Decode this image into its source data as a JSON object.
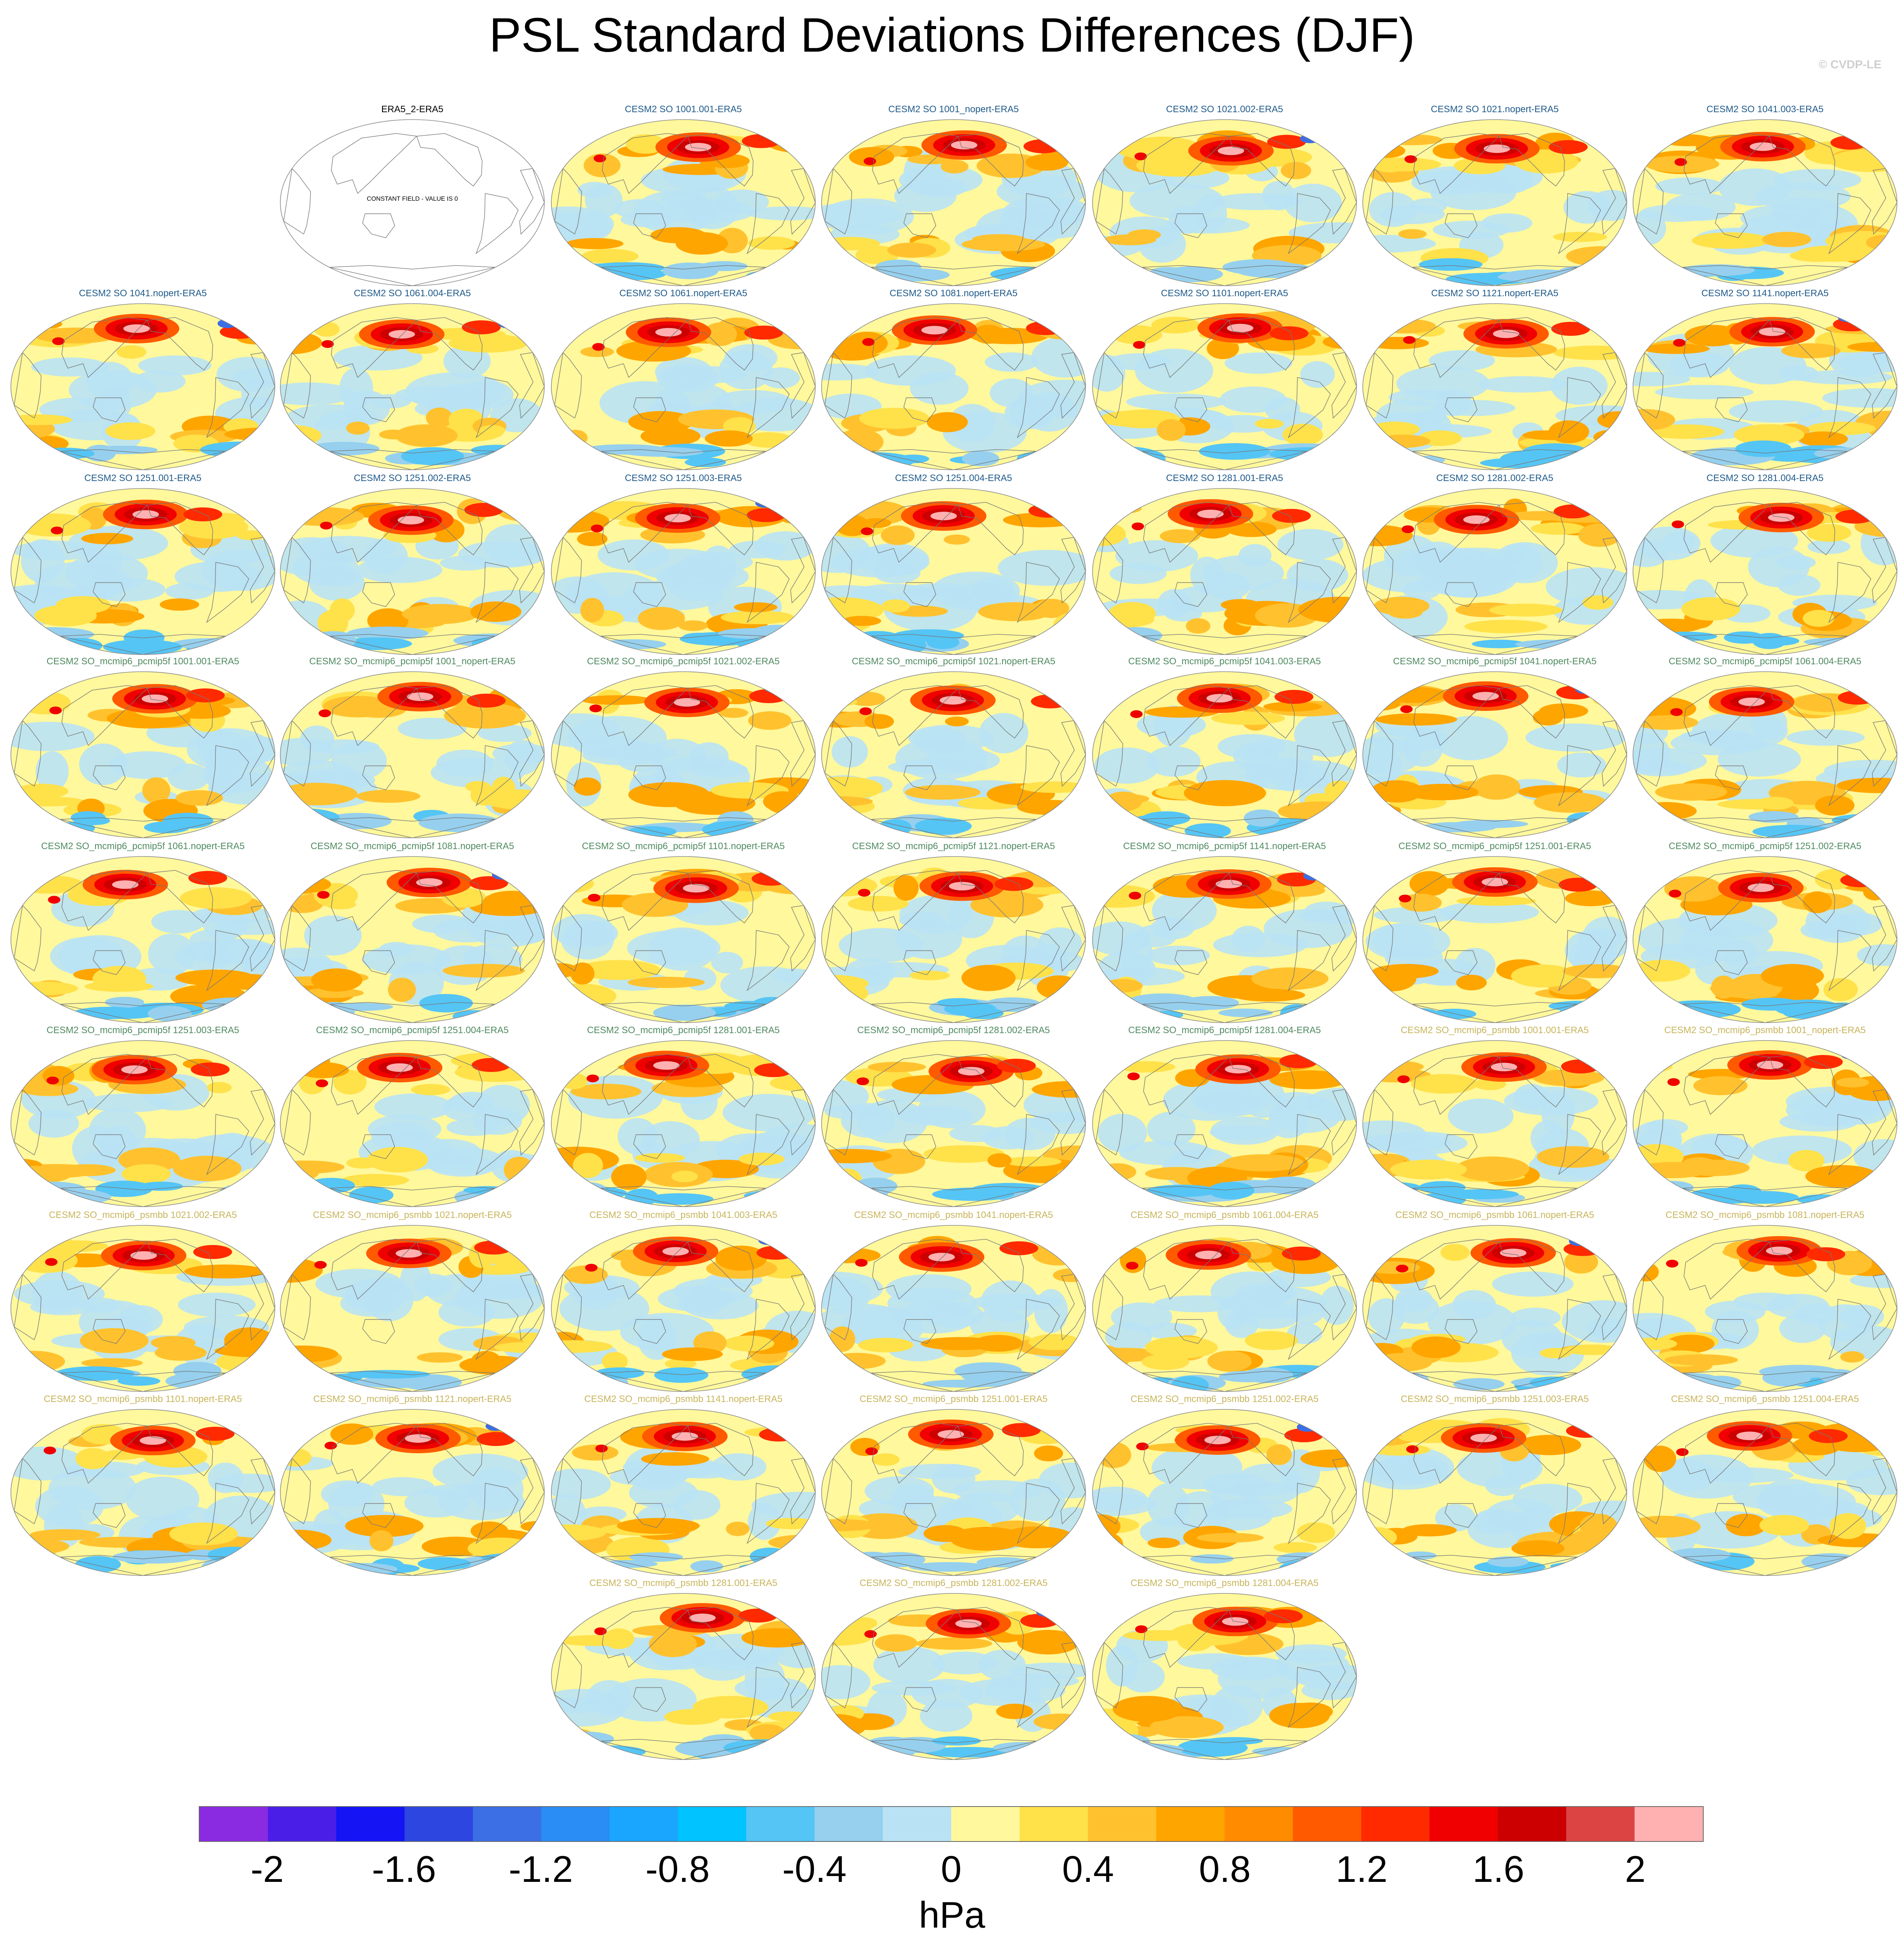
{
  "title": "PSL Standard Deviations Differences (DJF)",
  "credit": "© CVDP-LE",
  "constant_field_label": "CONSTANT FIELD - VALUE IS 0",
  "panels": [
    {
      "label": "ERA5_2-ERA5",
      "group": "ref"
    },
    {
      "label": "CESM2 SO 1001.001-ERA5",
      "group": "so"
    },
    {
      "label": "CESM2 SO 1001_nopert-ERA5",
      "group": "so"
    },
    {
      "label": "CESM2 SO 1021.002-ERA5",
      "group": "so"
    },
    {
      "label": "CESM2 SO 1021.nopert-ERA5",
      "group": "so"
    },
    {
      "label": "CESM2 SO 1041.003-ERA5",
      "group": "so"
    },
    {
      "label": "CESM2 SO 1041.nopert-ERA5",
      "group": "so"
    },
    {
      "label": "CESM2 SO 1061.004-ERA5",
      "group": "so"
    },
    {
      "label": "CESM2 SO 1061.nopert-ERA5",
      "group": "so"
    },
    {
      "label": "CESM2 SO 1081.nopert-ERA5",
      "group": "so"
    },
    {
      "label": "CESM2 SO 1101.nopert-ERA5",
      "group": "so"
    },
    {
      "label": "CESM2 SO 1121.nopert-ERA5",
      "group": "so"
    },
    {
      "label": "CESM2 SO 1141.nopert-ERA5",
      "group": "so"
    },
    {
      "label": "CESM2 SO 1251.001-ERA5",
      "group": "so"
    },
    {
      "label": "CESM2 SO 1251.002-ERA5",
      "group": "so"
    },
    {
      "label": "CESM2 SO 1251.003-ERA5",
      "group": "so"
    },
    {
      "label": "CESM2 SO 1251.004-ERA5",
      "group": "so"
    },
    {
      "label": "CESM2 SO 1281.001-ERA5",
      "group": "so"
    },
    {
      "label": "CESM2 SO 1281.002-ERA5",
      "group": "so"
    },
    {
      "label": "CESM2 SO 1281.004-ERA5",
      "group": "so"
    },
    {
      "label": "CESM2 SO_mcmip6_pcmip5f 1001.001-ERA5",
      "group": "pcmip5f"
    },
    {
      "label": "CESM2 SO_mcmip6_pcmip5f 1001_nopert-ERA5",
      "group": "pcmip5f"
    },
    {
      "label": "CESM2 SO_mcmip6_pcmip5f 1021.002-ERA5",
      "group": "pcmip5f"
    },
    {
      "label": "CESM2 SO_mcmip6_pcmip5f 1021.nopert-ERA5",
      "group": "pcmip5f"
    },
    {
      "label": "CESM2 SO_mcmip6_pcmip5f 1041.003-ERA5",
      "group": "pcmip5f"
    },
    {
      "label": "CESM2 SO_mcmip6_pcmip5f 1041.nopert-ERA5",
      "group": "pcmip5f"
    },
    {
      "label": "CESM2 SO_mcmip6_pcmip5f 1061.004-ERA5",
      "group": "pcmip5f"
    },
    {
      "label": "CESM2 SO_mcmip6_pcmip5f 1061.nopert-ERA5",
      "group": "pcmip5f"
    },
    {
      "label": "CESM2 SO_mcmip6_pcmip5f 1081.nopert-ERA5",
      "group": "pcmip5f"
    },
    {
      "label": "CESM2 SO_mcmip6_pcmip5f 1101.nopert-ERA5",
      "group": "pcmip5f"
    },
    {
      "label": "CESM2 SO_mcmip6_pcmip5f 1121.nopert-ERA5",
      "group": "pcmip5f"
    },
    {
      "label": "CESM2 SO_mcmip6_pcmip5f 1141.nopert-ERA5",
      "group": "pcmip5f"
    },
    {
      "label": "CESM2 SO_mcmip6_pcmip5f 1251.001-ERA5",
      "group": "pcmip5f"
    },
    {
      "label": "CESM2 SO_mcmip6_pcmip5f 1251.002-ERA5",
      "group": "pcmip5f"
    },
    {
      "label": "CESM2 SO_mcmip6_pcmip5f 1251.003-ERA5",
      "group": "pcmip5f"
    },
    {
      "label": "CESM2 SO_mcmip6_pcmip5f 1251.004-ERA5",
      "group": "pcmip5f"
    },
    {
      "label": "CESM2 SO_mcmip6_pcmip5f 1281.001-ERA5",
      "group": "pcmip5f"
    },
    {
      "label": "CESM2 SO_mcmip6_pcmip5f 1281.002-ERA5",
      "group": "pcmip5f"
    },
    {
      "label": "CESM2 SO_mcmip6_pcmip5f 1281.004-ERA5",
      "group": "pcmip5f"
    },
    {
      "label": "CESM2 SO_mcmip6_psmbb 1001.001-ERA5",
      "group": "psmbb"
    },
    {
      "label": "CESM2 SO_mcmip6_psmbb 1001_nopert-ERA5",
      "group": "psmbb"
    },
    {
      "label": "CESM2 SO_mcmip6_psmbb 1021.002-ERA5",
      "group": "psmbb"
    },
    {
      "label": "CESM2 SO_mcmip6_psmbb 1021.nopert-ERA5",
      "group": "psmbb"
    },
    {
      "label": "CESM2 SO_mcmip6_psmbb 1041.003-ERA5",
      "group": "psmbb"
    },
    {
      "label": "CESM2 SO_mcmip6_psmbb 1041.nopert-ERA5",
      "group": "psmbb"
    },
    {
      "label": "CESM2 SO_mcmip6_psmbb 1061.004-ERA5",
      "group": "psmbb"
    },
    {
      "label": "CESM2 SO_mcmip6_psmbb 1061.nopert-ERA5",
      "group": "psmbb"
    },
    {
      "label": "CESM2 SO_mcmip6_psmbb 1081.nopert-ERA5",
      "group": "psmbb"
    },
    {
      "label": "CESM2 SO_mcmip6_psmbb 1101.nopert-ERA5",
      "group": "psmbb"
    },
    {
      "label": "CESM2 SO_mcmip6_psmbb 1121.nopert-ERA5",
      "group": "psmbb"
    },
    {
      "label": "CESM2 SO_mcmip6_psmbb 1141.nopert-ERA5",
      "group": "psmbb"
    },
    {
      "label": "CESM2 SO_mcmip6_psmbb 1251.001-ERA5",
      "group": "psmbb"
    },
    {
      "label": "CESM2 SO_mcmip6_psmbb 1251.002-ERA5",
      "group": "psmbb"
    },
    {
      "label": "CESM2 SO_mcmip6_psmbb 1251.003-ERA5",
      "group": "psmbb"
    },
    {
      "label": "CESM2 SO_mcmip6_psmbb 1251.004-ERA5",
      "group": "psmbb"
    },
    {
      "label": "CESM2 SO_mcmip6_psmbb 1281.001-ERA5",
      "group": "psmbb"
    },
    {
      "label": "CESM2 SO_mcmip6_psmbb 1281.002-ERA5",
      "group": "psmbb"
    },
    {
      "label": "CESM2 SO_mcmip6_psmbb 1281.004-ERA5",
      "group": "psmbb"
    }
  ],
  "group_colors": {
    "ref": "#000000",
    "so": "#1f5a8a",
    "pcmip5f": "#4f8a5f",
    "psmbb": "#c8b45a"
  },
  "colorbar": {
    "colors": [
      "#8a2be2",
      "#4b1ee8",
      "#1414f5",
      "#2d46e0",
      "#3c6ee6",
      "#2a8cf5",
      "#1aa6ff",
      "#00c3ff",
      "#55c5f5",
      "#96d0ee",
      "#b9e2f5",
      "#fff89c",
      "#ffe14a",
      "#ffc22e",
      "#ffa500",
      "#ff8c00",
      "#ff5a00",
      "#ff2a00",
      "#f00000",
      "#cc0000",
      "#dc4444",
      "#ffb0b0"
    ],
    "ticks": [
      "-2",
      "-1.6",
      "-1.2",
      "-0.8",
      "-0.4",
      "0",
      "0.4",
      "0.8",
      "1.2",
      "1.6",
      "2"
    ],
    "units": "hPa"
  }
}
